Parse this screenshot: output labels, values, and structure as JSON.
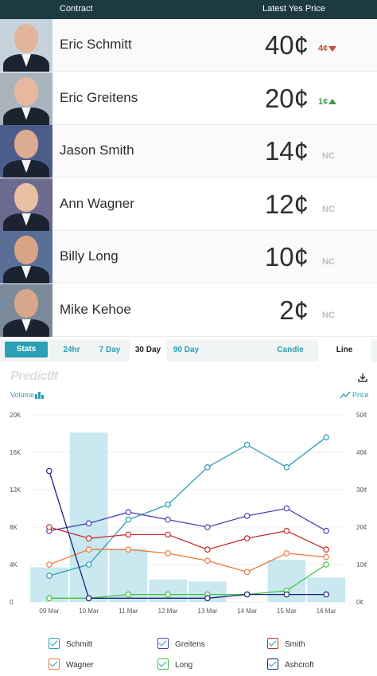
{
  "header": {
    "contract_label": "Contract",
    "price_label": "Latest Yes Price"
  },
  "contracts": [
    {
      "name": "Eric Schmitt",
      "price": "40¢",
      "change": "4¢",
      "direction": "down",
      "skin": "#e2b59a",
      "bg": "#c6d3dc"
    },
    {
      "name": "Eric Greitens",
      "price": "20¢",
      "change": "1¢",
      "direction": "up",
      "skin": "#e6b89e",
      "bg": "#a9b4bd"
    },
    {
      "name": "Jason Smith",
      "price": "14¢",
      "change": "NC",
      "direction": "none",
      "skin": "#dcaa8e",
      "bg": "#4d5d8a"
    },
    {
      "name": "Ann Wagner",
      "price": "12¢",
      "change": "NC",
      "direction": "none",
      "skin": "#e9bfa2",
      "bg": "#6c6a8e"
    },
    {
      "name": "Billy Long",
      "price": "10¢",
      "change": "NC",
      "direction": "none",
      "skin": "#d9a486",
      "bg": "#5a6f95"
    },
    {
      "name": "Mike Kehoe",
      "price": "2¢",
      "change": "NC",
      "direction": "none",
      "skin": "#d8a68a",
      "bg": "#7b8a9a"
    }
  ],
  "tabs": {
    "stats": "Stats",
    "h24": "24hr",
    "d7": "7 Day",
    "d30": "30 Day",
    "d90": "90 Day",
    "candle": "Candle",
    "line": "Line"
  },
  "chart_meta": {
    "logo": "PredictIt",
    "volume_label": "Volume",
    "price_label": "Price"
  },
  "chart_data": {
    "type": "line",
    "x": [
      "09 Mar",
      "10 Mar",
      "11 Mar",
      "12 Mar",
      "13 Mar",
      "14 Mar",
      "15 Mar",
      "16 Mar"
    ],
    "volume_axis": [
      "0",
      "4K",
      "8K",
      "12K",
      "16K",
      "20K"
    ],
    "volume_range": [
      0,
      20000
    ],
    "price_axis": [
      "0¢",
      "10¢",
      "20¢",
      "30¢",
      "40¢",
      "50¢"
    ],
    "price_range": [
      0,
      50
    ],
    "volume": [
      3700,
      18100,
      5700,
      2400,
      2200,
      0,
      4500,
      2600
    ],
    "series": [
      {
        "name": "Schmitt",
        "color": "#2b9fb6",
        "values": [
          7,
          10,
          22,
          26,
          36,
          42,
          36,
          44
        ]
      },
      {
        "name": "Greitens",
        "color": "#4b3fb5",
        "values": [
          19,
          21,
          24,
          22,
          20,
          23,
          25,
          19
        ]
      },
      {
        "name": "Smith",
        "color": "#cc2b2b",
        "values": [
          20,
          17,
          18,
          18,
          14,
          17,
          19,
          14
        ]
      },
      {
        "name": "Wagner",
        "color": "#f07a3c",
        "values": [
          10,
          14,
          14,
          13,
          11,
          8,
          13,
          12
        ]
      },
      {
        "name": "Long",
        "color": "#3ec43e",
        "values": [
          1,
          1,
          2,
          2,
          2,
          2,
          3,
          10
        ]
      },
      {
        "name": "Ashcroft",
        "color": "#1a237e",
        "values": [
          35,
          1,
          null,
          null,
          1,
          2,
          2,
          2
        ]
      }
    ],
    "grid": true
  },
  "legend": [
    {
      "name": "Schmitt",
      "color": "#2b9fb6"
    },
    {
      "name": "Greitens",
      "color": "#4b3fb5"
    },
    {
      "name": "Smith",
      "color": "#cc2b2b"
    },
    {
      "name": "Wagner",
      "color": "#f07a3c"
    },
    {
      "name": "Long",
      "color": "#3ec43e"
    },
    {
      "name": "Ashcroft",
      "color": "#1a237e"
    }
  ]
}
